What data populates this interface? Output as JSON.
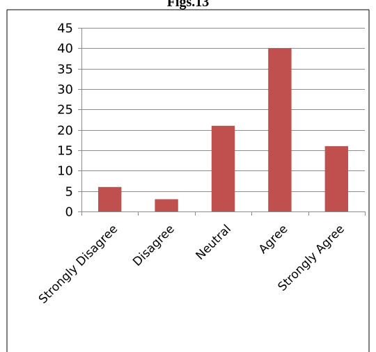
{
  "chart_data": {
    "type": "bar",
    "title": "Figs.13",
    "xlabel": "",
    "ylabel": "",
    "categories": [
      "Strongly Disagree",
      "Disagree",
      "Neutral",
      "Agree",
      "Strongly Agree"
    ],
    "values": [
      6,
      3,
      21,
      40,
      16
    ],
    "ylim": [
      0,
      45
    ],
    "yticks": [
      0,
      5,
      10,
      15,
      20,
      25,
      30,
      35,
      40,
      45
    ],
    "grid": true,
    "legend": "none",
    "bar_color": "#c0504d"
  }
}
